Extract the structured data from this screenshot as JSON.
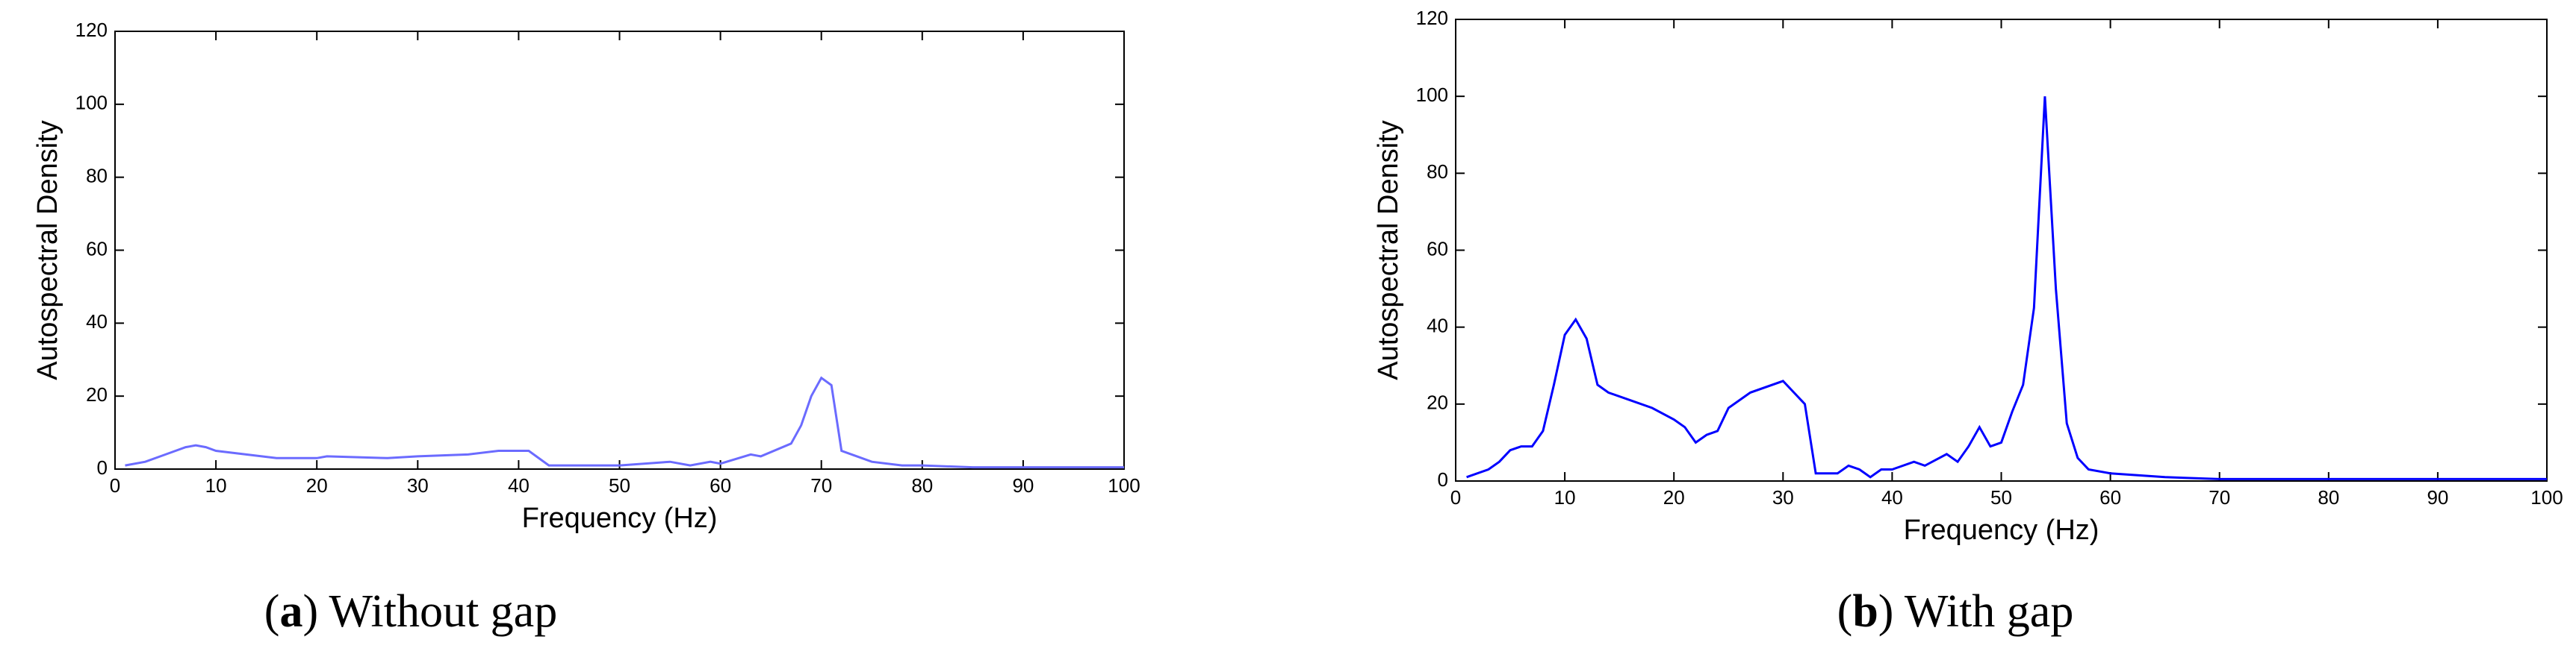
{
  "chart_data": [
    {
      "type": "line",
      "caption": [
        "(",
        "a",
        ") Without gap"
      ],
      "xlabel": "Frequency (Hz)",
      "ylabel": "Autospectral Density",
      "x": [
        1,
        3,
        5,
        7,
        8,
        9,
        10,
        13,
        16,
        20,
        21,
        27,
        30,
        35,
        38,
        41,
        43,
        50,
        55,
        57,
        59,
        60,
        63,
        64,
        67,
        68,
        69,
        70,
        71,
        72,
        75,
        78,
        80,
        85,
        90,
        100
      ],
      "values": [
        1,
        2,
        4,
        6,
        6.5,
        6,
        5,
        4,
        3,
        3,
        3.5,
        3,
        3.5,
        4,
        5,
        5,
        1,
        1,
        2,
        1,
        2,
        1.5,
        4,
        3.5,
        7,
        12,
        20,
        25,
        23,
        5,
        2,
        1,
        1,
        0.5,
        0.5,
        0.5
      ],
      "color": "#6b6bff",
      "xlim": [
        0,
        100
      ],
      "ylim": [
        0,
        120
      ],
      "xticks": [
        0,
        10,
        20,
        30,
        40,
        50,
        60,
        70,
        80,
        90,
        100
      ],
      "yticks": [
        0,
        20,
        40,
        60,
        80,
        100,
        120
      ]
    },
    {
      "type": "line",
      "caption": [
        "(",
        "b",
        ") With gap"
      ],
      "xlabel": "Frequency (Hz)",
      "ylabel": "Autospectral Density",
      "x": [
        1,
        3,
        4,
        5,
        6,
        7,
        8,
        9,
        10,
        11,
        12,
        13,
        14,
        16,
        18,
        20,
        21,
        22,
        23,
        24,
        25,
        27,
        30,
        32,
        33,
        35,
        36,
        37,
        38,
        39,
        40,
        42,
        43,
        45,
        46,
        47,
        48,
        49,
        50,
        51,
        52,
        53,
        54,
        55,
        56,
        57,
        58,
        60,
        65,
        70,
        80,
        100
      ],
      "values": [
        1,
        3,
        5,
        8,
        9,
        9,
        13,
        25,
        38,
        42,
        37,
        25,
        23,
        21,
        19,
        16,
        14,
        10,
        12,
        13,
        19,
        23,
        26,
        20,
        2,
        2,
        4,
        3,
        1,
        3,
        3,
        5,
        4,
        7,
        5,
        9,
        14,
        9,
        10,
        18,
        25,
        45,
        100,
        50,
        15,
        6,
        3,
        2,
        1,
        0.5,
        0.5,
        0.5
      ],
      "color": "#0000ff",
      "xlim": [
        0,
        100
      ],
      "ylim": [
        0,
        120
      ],
      "xticks": [
        0,
        10,
        20,
        30,
        40,
        50,
        60,
        70,
        80,
        90,
        100
      ],
      "yticks": [
        0,
        20,
        40,
        60,
        80,
        100,
        120
      ]
    }
  ]
}
